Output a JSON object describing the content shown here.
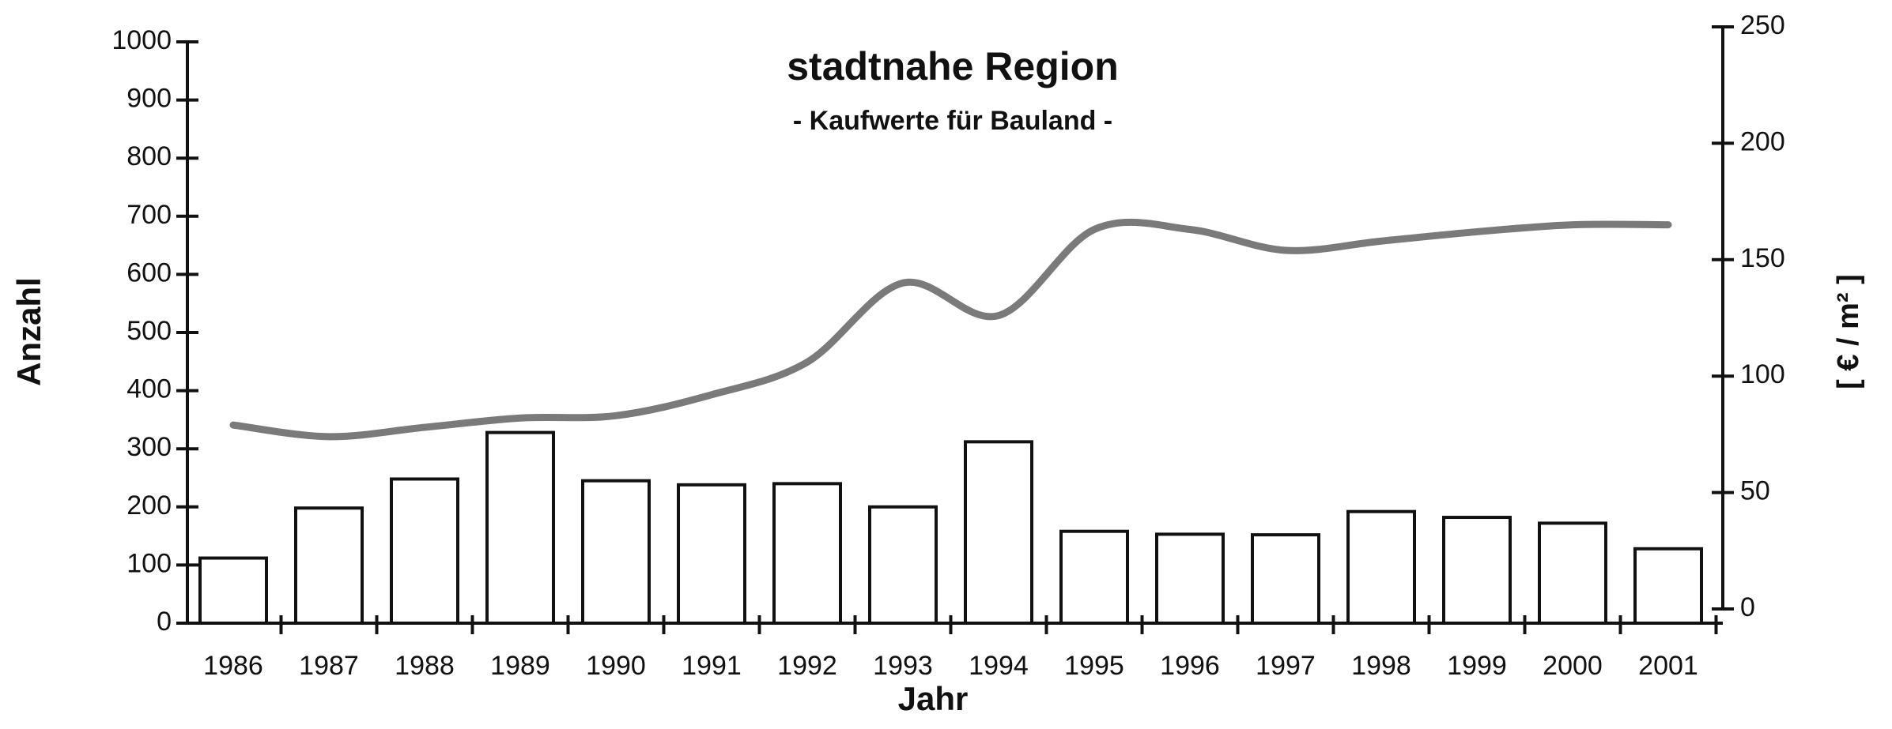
{
  "chart_data": {
    "type": "bar_line",
    "title": "stadtnahe Region",
    "subtitle": "- Kaufwerte für Bauland -",
    "x_label": "Jahr",
    "y_label": "Anzahl",
    "y2_label": "[ € / m² ]",
    "categories": [
      "1986",
      "1987",
      "1988",
      "1989",
      "1990",
      "1991",
      "1992",
      "1993",
      "1994",
      "1995",
      "1996",
      "1997",
      "1998",
      "1999",
      "2000",
      "2001"
    ],
    "series": [
      {
        "name": "Anzahl",
        "type": "bar",
        "color": "#ffffff",
        "values": [
          112,
          198,
          248,
          328,
          245,
          238,
          240,
          200,
          312,
          158,
          153,
          152,
          192,
          182,
          172,
          128
        ]
      },
      {
        "name": "Kaufwerte",
        "type": "line",
        "axis": "y2",
        "color": "#7a7a7a",
        "values": [
          79,
          74,
          78,
          82,
          83,
          92,
          106,
          140,
          126,
          163,
          163,
          154,
          158,
          162,
          165,
          165
        ]
      }
    ],
    "ylim": [
      0,
      1000
    ],
    "yticks": [
      0,
      100,
      200,
      300,
      400,
      500,
      600,
      700,
      800,
      900,
      1000
    ],
    "y2lim": [
      0,
      250
    ],
    "y2ticks": [
      0,
      50,
      100,
      150,
      200,
      250
    ]
  }
}
